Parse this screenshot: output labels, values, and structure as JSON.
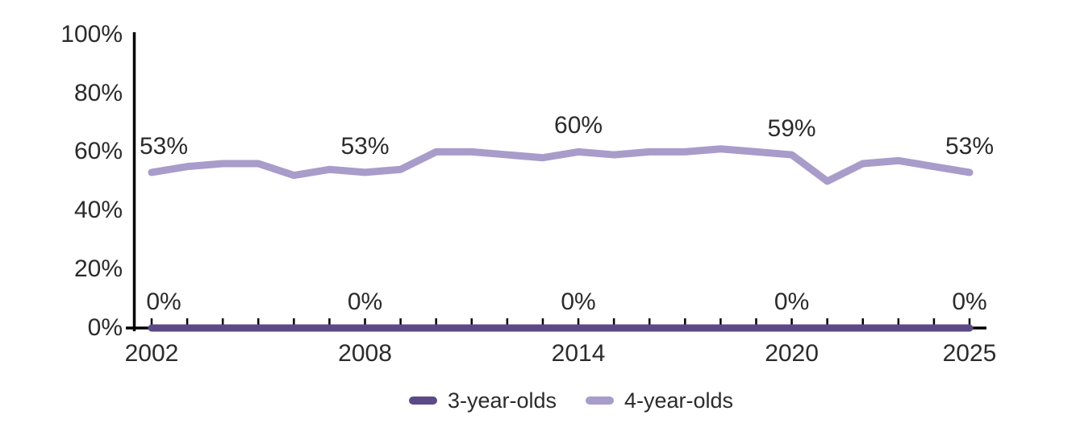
{
  "chart_data": {
    "type": "line",
    "title": "",
    "xlabel": "",
    "ylabel": "",
    "ylim": [
      0,
      100
    ],
    "grid": false,
    "legend_position": "bottom",
    "x": [
      2002,
      2003,
      2004,
      2005,
      2006,
      2007,
      2008,
      2009,
      2010,
      2011,
      2012,
      2013,
      2014,
      2015,
      2016,
      2017,
      2018,
      2019,
      2020,
      2021,
      2022,
      2023,
      2024,
      2025
    ],
    "series": [
      {
        "name": "3-year-olds",
        "color": "#5b4a87",
        "values": [
          0,
          0,
          0,
          0,
          0,
          0,
          0,
          0,
          0,
          0,
          0,
          0,
          0,
          0,
          0,
          0,
          0,
          0,
          0,
          0,
          0,
          0,
          0,
          0
        ]
      },
      {
        "name": "4-year-olds",
        "color": "#a89cca",
        "values": [
          53,
          55,
          56,
          56,
          52,
          54,
          53,
          54,
          60,
          60,
          59,
          58,
          60,
          59,
          60,
          60,
          61,
          60,
          59,
          50,
          56,
          57,
          55,
          53
        ]
      }
    ],
    "y_ticks": [
      {
        "value": 0,
        "label": "0%"
      },
      {
        "value": 20,
        "label": "20%"
      },
      {
        "value": 40,
        "label": "40%"
      },
      {
        "value": 60,
        "label": "60%"
      },
      {
        "value": 80,
        "label": "80%"
      },
      {
        "value": 100,
        "label": "100%"
      }
    ],
    "x_labels": [
      {
        "year": 2002,
        "label": "2002"
      },
      {
        "year": 2008,
        "label": "2008"
      },
      {
        "year": 2014,
        "label": "2014"
      },
      {
        "year": 2020,
        "label": "2020"
      },
      {
        "year": 2025,
        "label": "2025"
      }
    ],
    "data_labels": [
      {
        "series": "4-year-olds",
        "year": 2002,
        "label": "53%"
      },
      {
        "series": "4-year-olds",
        "year": 2008,
        "label": "53%"
      },
      {
        "series": "4-year-olds",
        "year": 2014,
        "label": "60%"
      },
      {
        "series": "4-year-olds",
        "year": 2020,
        "label": "59%"
      },
      {
        "series": "4-year-olds",
        "year": 2025,
        "label": "53%"
      },
      {
        "series": "3-year-olds",
        "year": 2002,
        "label": "0%"
      },
      {
        "series": "3-year-olds",
        "year": 2008,
        "label": "0%"
      },
      {
        "series": "3-year-olds",
        "year": 2014,
        "label": "0%"
      },
      {
        "series": "3-year-olds",
        "year": 2020,
        "label": "0%"
      },
      {
        "series": "3-year-olds",
        "year": 2025,
        "label": "0%"
      }
    ]
  },
  "legend": {
    "items": [
      {
        "label": "3-year-olds",
        "color": "#5b4a87"
      },
      {
        "label": "4-year-olds",
        "color": "#a89cca"
      }
    ]
  },
  "colors": {
    "axis": "#000000",
    "text": "#2b2b2b",
    "background": "#ffffff",
    "series_dark": "#5b4a87",
    "series_light": "#a89cca"
  }
}
